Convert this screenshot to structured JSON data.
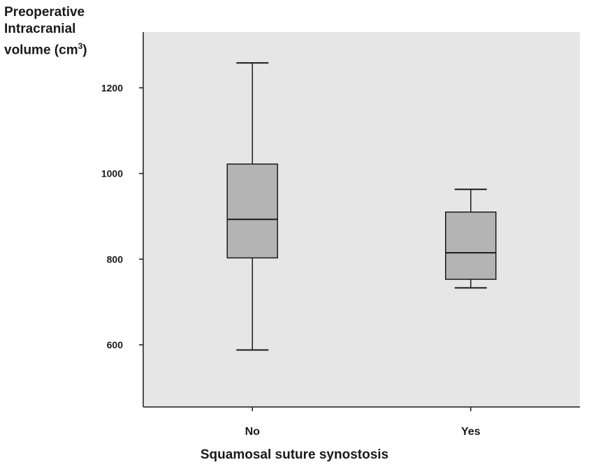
{
  "chart_data": {
    "type": "box",
    "ylabel_lines": [
      "Preoperative",
      "Intracranial",
      "volume (cm"
    ],
    "ylabel_sup": "3",
    "ylabel_close": ")",
    "xlabel": "Squamosal suture synostosis",
    "ylim": [
      455,
      1330
    ],
    "yticks": [
      600,
      800,
      1000,
      1200
    ],
    "ytick_labels": [
      "600",
      "800",
      "1000",
      "1200"
    ],
    "categories": [
      "No",
      "Yes"
    ],
    "boxes": [
      {
        "category": "No",
        "min": 588,
        "q1": 803,
        "median": 893,
        "q3": 1022,
        "max": 1258
      },
      {
        "category": "Yes",
        "min": 733,
        "q1": 753,
        "median": 815,
        "q3": 910,
        "max": 963
      }
    ],
    "grid": false,
    "colors": {
      "plot_bg": "#e6e6e6",
      "box_fill": "#b4b4b4",
      "stroke": "#1a1a1a"
    }
  }
}
